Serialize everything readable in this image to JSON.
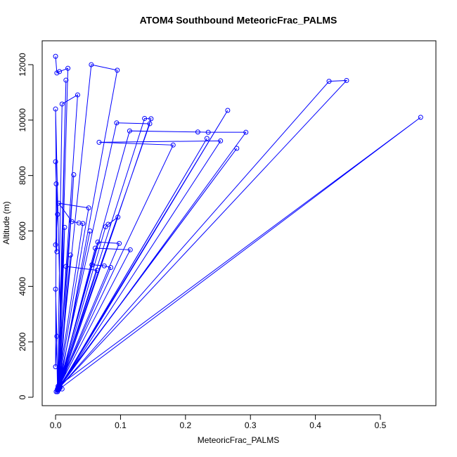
{
  "chart_data": {
    "type": "line",
    "title": "ATOM4 Southbound MeteoricFrac_PALMS",
    "x_label": "MeteoricFrac_PALMS",
    "y_label": "Altitude (m)",
    "x": [
      0.0,
      0.002,
      0.006,
      0.019,
      0.005,
      0.016,
      0.004,
      0.034,
      0.01,
      0.003,
      0.055,
      0.095,
      0.006,
      0.421,
      0.448,
      0.004,
      0.265,
      0.003,
      0.137,
      0.147,
      0.005,
      0.562,
      0.004,
      0.094,
      0.145,
      0.006,
      0.114,
      0.219,
      0.235,
      0.293,
      0.005,
      0.233,
      0.004,
      0.254,
      0.067,
      0.181,
      0.003,
      0.279,
      0.007,
      0.028,
      0.004,
      0.051,
      0.005,
      0.025,
      0.036,
      0.042,
      0.003,
      0.014,
      0.006,
      0.096,
      0.081,
      0.077,
      0.004,
      0.053,
      0.005,
      0.065,
      0.098,
      0.003,
      0.115,
      0.061,
      0.006,
      0.023,
      0.004,
      0.056,
      0.075,
      0.085,
      0.005,
      0.016,
      0.064,
      0.003,
      0.0,
      0.002,
      0.0,
      0.001,
      0.0,
      0.003,
      0.0,
      0.002,
      0.0,
      0.01,
      0.001
    ],
    "series": [
      {
        "color": "#0000ff",
        "values": [
          12300,
          11700,
          11750,
          11870,
          300,
          11440,
          400,
          10910,
          10580,
          250,
          12000,
          11800,
          350,
          11400,
          11430,
          300,
          10350,
          200,
          10060,
          10050,
          280,
          10100,
          400,
          9900,
          9870,
          500,
          9610,
          9570,
          9560,
          9560,
          320,
          9340,
          260,
          9250,
          9200,
          9100,
          300,
          8980,
          450,
          8030,
          350,
          6830,
          7000,
          6340,
          6290,
          6270,
          300,
          6130,
          400,
          6500,
          6240,
          6150,
          260,
          6000,
          350,
          5600,
          5550,
          280,
          5320,
          5380,
          450,
          5130,
          300,
          4780,
          4740,
          4680,
          330,
          4720,
          4580,
          250,
          3900,
          2200,
          1100,
          7700,
          8500,
          6600,
          5500,
          5250,
          10400,
          300,
          200
        ]
      }
    ],
    "xlim": [
      -0.0206,
      0.5855
    ],
    "ylim": [
      -304,
      12862
    ],
    "xticks": [
      {
        "value": 0,
        "label": "0.0"
      },
      0.1,
      0.2,
      0.3,
      0.4,
      0.5
    ],
    "yticks": [
      0,
      2000,
      4000,
      6000,
      8000,
      10000,
      12000
    ]
  }
}
